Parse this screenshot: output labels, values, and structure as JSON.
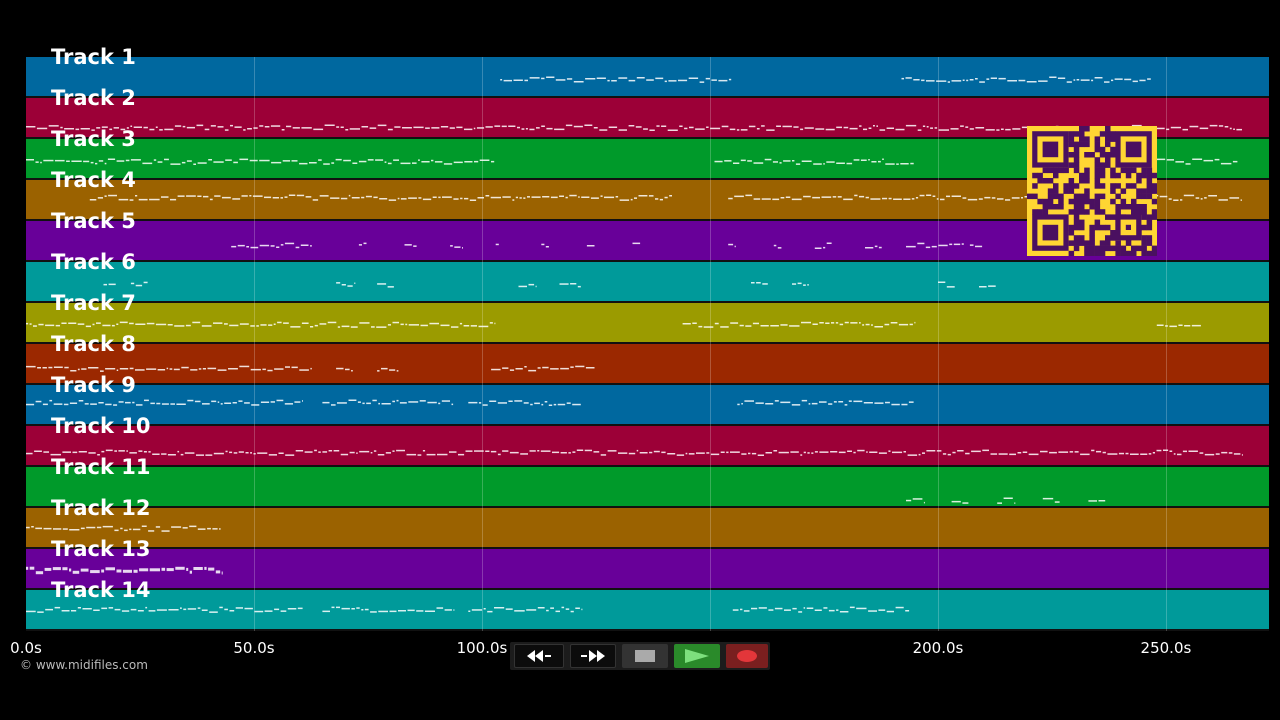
{
  "tracks": [
    {
      "label": "Track 1",
      "color": "#00689f"
    },
    {
      "label": "Track 2",
      "color": "#9c0037"
    },
    {
      "label": "Track 3",
      "color": "#009a2a"
    },
    {
      "label": "Track 4",
      "color": "#9b6200"
    },
    {
      "label": "Track 5",
      "color": "#680099"
    },
    {
      "label": "Track 6",
      "color": "#009a9a"
    },
    {
      "label": "Track 7",
      "color": "#9b9b00"
    },
    {
      "label": "Track 8",
      "color": "#9b2800"
    },
    {
      "label": "Track 9",
      "color": "#00689f"
    },
    {
      "label": "Track 10",
      "color": "#9c0037"
    },
    {
      "label": "Track 11",
      "color": "#009a2a"
    },
    {
      "label": "Track 12",
      "color": "#9b6200"
    },
    {
      "label": "Track 13",
      "color": "#680099"
    },
    {
      "label": "Track 14",
      "color": "#009a9a"
    }
  ],
  "timeline": {
    "tick_labels": [
      "0.0s",
      "50.0s",
      "100.0s",
      "150.0s",
      "200.0s",
      "250.0s"
    ],
    "tick_seconds": [
      0,
      50,
      100,
      150,
      200,
      250
    ],
    "max_seconds": 272.6
  },
  "note_segments": [
    [
      [
        104,
        155
      ],
      [
        192,
        247
      ]
    ],
    [
      [
        0,
        267
      ]
    ],
    [
      [
        0,
        103
      ],
      [
        151,
        195
      ],
      [
        248,
        266
      ]
    ],
    [
      [
        14,
        142
      ],
      [
        154,
        267
      ]
    ],
    [
      [
        45,
        63
      ],
      [
        73,
        75
      ],
      [
        83,
        86
      ],
      [
        93,
        96
      ],
      [
        103,
        104
      ],
      [
        113,
        115
      ],
      [
        123,
        125
      ],
      [
        133,
        135
      ],
      [
        154,
        156
      ],
      [
        164,
        166
      ],
      [
        173,
        177
      ],
      [
        184,
        188
      ],
      [
        193,
        206
      ],
      [
        207,
        210
      ]
    ],
    [
      [
        17,
        20
      ],
      [
        23,
        27
      ],
      [
        68,
        72
      ],
      [
        77,
        81
      ],
      [
        108,
        112
      ],
      [
        117,
        122
      ],
      [
        159,
        163
      ],
      [
        168,
        172
      ],
      [
        200,
        204
      ],
      [
        209,
        213
      ]
    ],
    [
      [
        0,
        103
      ],
      [
        144,
        195
      ],
      [
        248,
        258
      ]
    ],
    [
      [
        0,
        63
      ],
      [
        68,
        72
      ],
      [
        77,
        82
      ],
      [
        102,
        125
      ]
    ],
    [
      [
        0,
        61
      ],
      [
        65,
        94
      ],
      [
        97,
        122
      ],
      [
        156,
        195
      ]
    ],
    [
      [
        0,
        267
      ]
    ],
    [
      [
        193,
        197
      ],
      [
        203,
        207
      ],
      [
        213,
        217
      ],
      [
        223,
        227
      ],
      [
        233,
        237
      ]
    ],
    [
      [
        0,
        43
      ]
    ],
    [
      [
        0,
        43
      ]
    ],
    [
      [
        0,
        61
      ],
      [
        65,
        94
      ],
      [
        97,
        122
      ],
      [
        155,
        194
      ]
    ]
  ],
  "copyright": "© www.midifiles.com",
  "transport": {
    "rewind_icon": "rewind-icon",
    "fast_forward_icon": "fast-forward-icon",
    "stop_icon": "stop-icon",
    "play_icon": "play-icon",
    "record_icon": "record-icon",
    "play_color": "#2a8a2a",
    "record_color": "#7a1f1f"
  },
  "qr_code_icon": "qr-code-icon"
}
